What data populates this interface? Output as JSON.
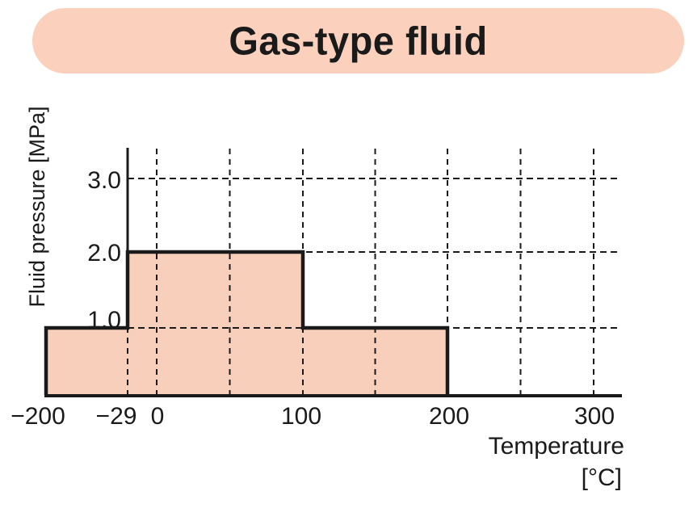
{
  "title": {
    "text": "Gas-type fluid"
  },
  "colors": {
    "banner": "#fbd1bd",
    "area_fill": "#f8cfba",
    "line": "#1a1a1a",
    "text": "#1a1a1a",
    "background": "#ffffff"
  },
  "chart_data": {
    "type": "area",
    "subtype": "step-function",
    "title": "Gas-type fluid",
    "xlabel": "Temperature",
    "xlabel_unit": "[°C]",
    "ylabel": "Fluid pressure [MPa]",
    "xlim": [
      -200,
      300
    ],
    "ylim": [
      0,
      3.4
    ],
    "grid": "dashed",
    "legend_position": "none",
    "steps": [
      {
        "t_from": -200,
        "t_to": -29,
        "pressure": 1.0
      },
      {
        "t_from": -29,
        "t_to": 100,
        "pressure": 2.0
      },
      {
        "t_from": 100,
        "t_to": 200,
        "pressure": 1.0
      }
    ],
    "x_ticks": [
      {
        "value": -200,
        "label": "−200"
      },
      {
        "value": -29,
        "label": "−29"
      },
      {
        "value": 0,
        "label": "0"
      },
      {
        "value": 100,
        "label": "100"
      },
      {
        "value": 200,
        "label": "200"
      },
      {
        "value": 300,
        "label": "300"
      }
    ],
    "y_ticks": [
      {
        "value": 1,
        "label": "1.0"
      },
      {
        "value": 2,
        "label": "2.0"
      },
      {
        "value": 3,
        "label": "3.0"
      }
    ],
    "x_gridlines": [
      -29,
      0,
      50,
      100,
      150,
      200,
      250,
      300
    ],
    "y_gridlines": [
      1,
      2,
      3
    ]
  }
}
